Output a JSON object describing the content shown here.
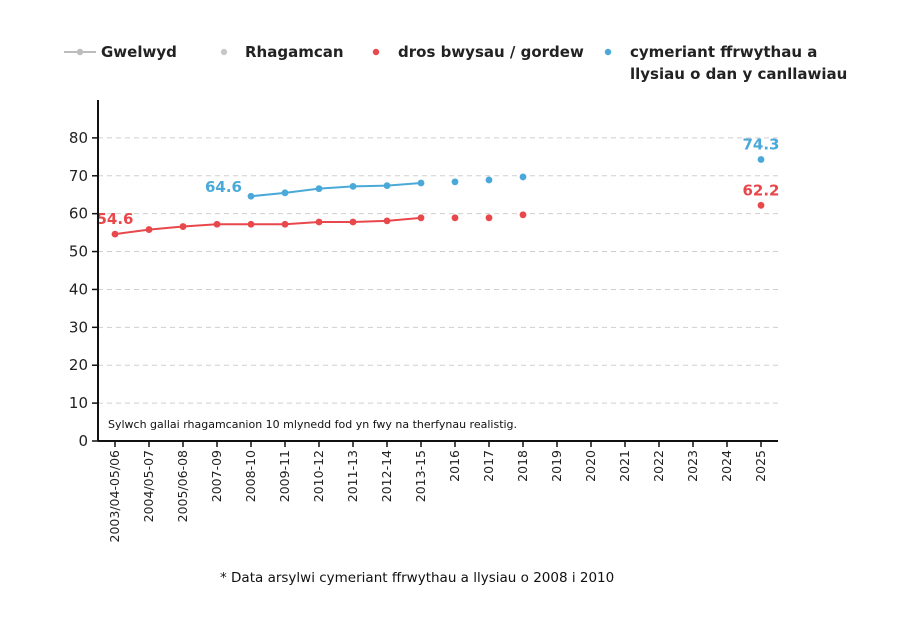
{
  "chart_data": {
    "type": "line",
    "legend": {
      "observed": "Gwelwyd",
      "forecast": "Rhagamcan",
      "overweight": "dros bwysau / gordew",
      "fruitveg_line1": "cymeriant ffrwythau a",
      "fruitveg_line2": "llysiau o dan y canllawiau"
    },
    "categories": [
      "2003/04-05/06",
      "2004/05-07",
      "2005/06-08",
      "2007-09",
      "2008-10",
      "2009-11",
      "2010-12",
      "2011-13",
      "2012-14",
      "2013-15",
      "2016",
      "2017",
      "2018",
      "2019",
      "2020",
      "2021",
      "2022",
      "2023",
      "2024",
      "2025"
    ],
    "yticks": [
      "0",
      "10",
      "20",
      "30",
      "40",
      "50",
      "60",
      "70",
      "80"
    ],
    "ylim": [
      0,
      90
    ],
    "grid": true,
    "series": [
      {
        "name": "dros bwysau / gordew",
        "color": "#e8474b",
        "observed": [
          54.6,
          55.8,
          56.6,
          57.2,
          57.2,
          57.2,
          57.8,
          57.8,
          58.1,
          58.9,
          null,
          null,
          null,
          null,
          null,
          null,
          null,
          null,
          null,
          null
        ],
        "forecast": [
          null,
          null,
          null,
          null,
          null,
          null,
          null,
          null,
          null,
          null,
          58.9,
          58.9,
          59.7,
          null,
          null,
          null,
          null,
          null,
          null,
          62.2
        ],
        "labels": [
          {
            "index": 0,
            "text": "54.6",
            "position": "above"
          },
          {
            "index": 19,
            "text": "62.2",
            "position": "above"
          }
        ]
      },
      {
        "name": "cymeriant ffrwythau a llysiau o dan y canllawiau",
        "color": "#4aa9d8",
        "observed": [
          null,
          null,
          null,
          null,
          64.6,
          65.5,
          66.6,
          67.2,
          67.4,
          68.1,
          null,
          null,
          null,
          null,
          null,
          null,
          null,
          null,
          null,
          null
        ],
        "forecast": [
          null,
          null,
          null,
          null,
          null,
          null,
          null,
          null,
          null,
          null,
          68.4,
          68.9,
          69.7,
          null,
          null,
          null,
          null,
          null,
          null,
          74.3
        ],
        "labels": [
          {
            "index": 4,
            "text": "64.6",
            "position": "left"
          },
          {
            "index": 19,
            "text": "74.3",
            "position": "above"
          }
        ]
      }
    ],
    "note": "Sylwch gallai rhagamcanion 10 mlynedd fod yn fwy na therfynau realistig.",
    "footnote": "* Data arsylwi cymeriant ffrwythau a llysiau o 2008 i 2010"
  },
  "colors": {
    "observed_gray": "#bdbdbd",
    "forecast_gray": "#c8c8c8",
    "grid": "#cfcfcf",
    "axis": "#111111"
  }
}
